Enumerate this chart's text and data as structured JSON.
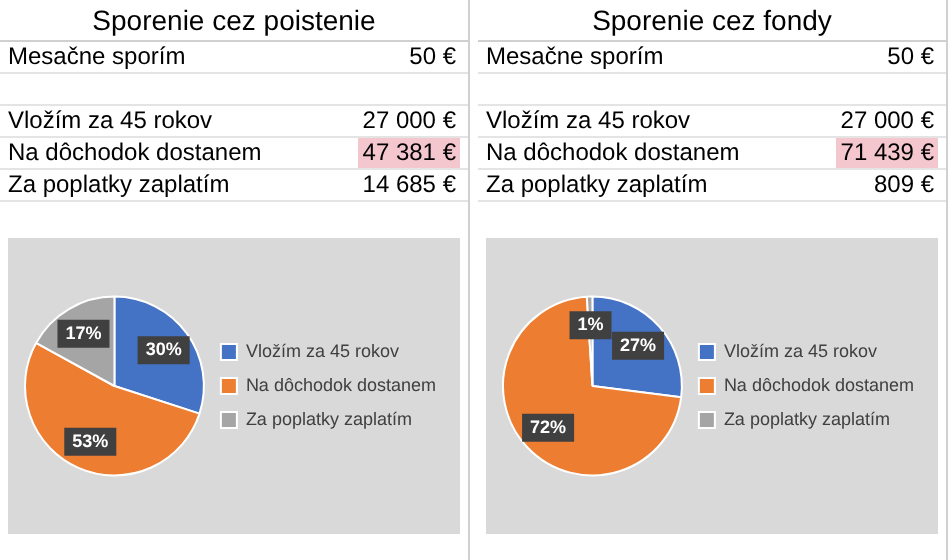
{
  "chart_data": [
    {
      "type": "pie",
      "title": "Sporenie cez poistenie",
      "categories": [
        "Vložím za 45 rokov",
        "Na dôchodok dostanem",
        "Za poplatky zaplatím"
      ],
      "values": [
        30,
        53,
        17
      ],
      "colors": [
        "#4472c4",
        "#ed7d31",
        "#a5a5a5"
      ],
      "value_labels": [
        "30%",
        "53%",
        "17%"
      ],
      "legend": "right",
      "annotations": [
        "Mesačne sporím",
        "50 €",
        "Vložím za 45 rokov",
        "27 000 €",
        "Na dôchodok dostanem",
        "47 381 €",
        "Za poplatky zaplatím",
        "14 685 €"
      ]
    },
    {
      "type": "pie",
      "title": "Sporenie cez fondy",
      "categories": [
        "Vložím za 45 rokov",
        "Na dôchodok dostanem",
        "Za poplatky zaplatím"
      ],
      "values": [
        27,
        72,
        1
      ],
      "colors": [
        "#4472c4",
        "#ed7d31",
        "#a5a5a5"
      ],
      "value_labels": [
        "27%",
        "72%",
        "1%"
      ],
      "legend": "right",
      "annotations": [
        "Mesačne sporím",
        "50 €",
        "Vložím za 45 rokov",
        "27 000 €",
        "Na dôchodok dostanem",
        "71 439 €",
        "Za poplatky zaplatím",
        "809 €"
      ]
    }
  ]
}
